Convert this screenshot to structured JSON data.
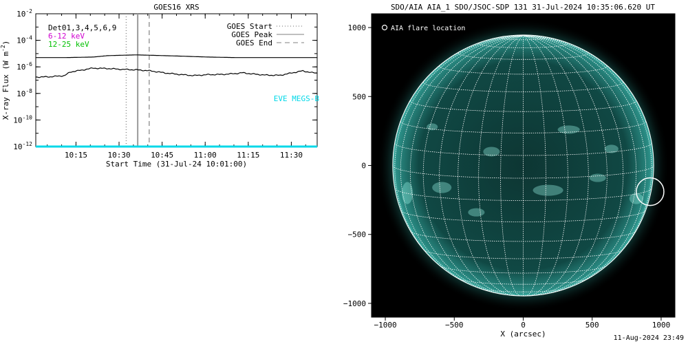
{
  "footer_timestamp": "11-Aug-2024 23:49",
  "chart_data": [
    {
      "type": "line",
      "title": "GOES16 XRS",
      "xlabel": "Start Time (31-Jul-24 10:01:00)",
      "ylabel": "X-ray Flux (W m^-2)",
      "ylabel_parts": {
        "main": "X-ray Flux (W m",
        "exp": "-2",
        "close": ")"
      },
      "y_scale": "log",
      "ylim": [
        1e-12,
        0.01
      ],
      "y_ticks": [
        {
          "base": "10",
          "exp": "-2",
          "value": 0.01
        },
        {
          "base": "10",
          "exp": "-4",
          "value": 0.0001
        },
        {
          "base": "10",
          "exp": "-6",
          "value": 1e-06
        },
        {
          "base": "10",
          "exp": "-8",
          "value": 1e-08
        },
        {
          "base": "10",
          "exp": "-10",
          "value": 1e-10
        },
        {
          "base": "10",
          "exp": "-12",
          "value": 1e-12
        }
      ],
      "x_range_minutes": [
        0,
        98
      ],
      "x_ticks": [
        {
          "label": "10:15",
          "minutes": 14
        },
        {
          "label": "10:30",
          "minutes": 29
        },
        {
          "label": "10:45",
          "minutes": 44
        },
        {
          "label": "11:00",
          "minutes": 59
        },
        {
          "label": "11:15",
          "minutes": 74
        },
        {
          "label": "11:30",
          "minutes": 89
        }
      ],
      "detectors_label": "Det01,3,4,5,6,9",
      "channel_labels": [
        {
          "text": "6-12 keV",
          "color": "#d000d0"
        },
        {
          "text": "12-25 keV",
          "color": "#00c000"
        }
      ],
      "eve_label": {
        "text": "EVE MEGS-B",
        "color": "#00d8e8"
      },
      "legend_position": "top-right",
      "legend": [
        {
          "label": "GOES Start",
          "style": "dotted",
          "minutes": 31.5
        },
        {
          "label": "GOES Peak",
          "style": "solid",
          "minutes": 35.5
        },
        {
          "label": "GOES End",
          "style": "dashed",
          "minutes": 39.5
        }
      ],
      "series": [
        {
          "color": "#000000",
          "x": [
            0,
            10,
            20,
            25,
            30,
            35,
            40,
            50,
            60,
            70,
            80,
            90,
            98
          ],
          "y": [
            5e-06,
            5e-06,
            5.5e-06,
            7e-06,
            7.5e-06,
            8e-06,
            7.5e-06,
            6.5e-06,
            5.5e-06,
            5e-06,
            5e-06,
            5e-06,
            5e-06
          ]
        },
        {
          "color": "#000000",
          "x": [
            0,
            5,
            10,
            12,
            14,
            16,
            18,
            20,
            25,
            30,
            35,
            40,
            45,
            50,
            55,
            60,
            65,
            70,
            72,
            75,
            80,
            85,
            90,
            93,
            96,
            98
          ],
          "y": [
            1.7e-07,
            1.8e-07,
            2.2e-07,
            4e-07,
            5e-07,
            5.5e-07,
            7e-07,
            8e-07,
            7.5e-07,
            6.5e-07,
            6e-07,
            5e-07,
            3.5e-07,
            2.7e-07,
            2.2e-07,
            2.6e-07,
            2.7e-07,
            3.2e-07,
            3.6e-07,
            3e-07,
            2.4e-07,
            2.3e-07,
            3.8e-07,
            5e-07,
            3.7e-07,
            3.4e-07
          ]
        },
        {
          "color": "#00d8e8",
          "x": [
            0,
            98
          ],
          "y": [
            1e-12,
            1e-12
          ]
        }
      ]
    },
    {
      "type": "scatter",
      "title": "SDO/AIA AIA_1 SDO/JSOC-SDP 131 31-Jul-2024 10:35:06.620 UT",
      "xlabel": "X (arcsec)",
      "ylabel": "",
      "xlim": [
        -1100,
        1100
      ],
      "ylim": [
        -1100,
        1100
      ],
      "x_ticks": [
        -1000,
        -500,
        0,
        500,
        1000
      ],
      "y_ticks": [
        -1000,
        -500,
        0,
        500,
        1000
      ],
      "x_tick_labels": [
        "−1000",
        "−500",
        "0",
        "500",
        "1000"
      ],
      "y_tick_labels": [
        "−1000",
        "−500",
        "0",
        "500",
        "1000"
      ],
      "legend_label": "AIA flare location",
      "solar_radius_arcsec": 946,
      "grid_step_deg": 10,
      "flare_location": {
        "x": 920,
        "y": -190,
        "radius": 100
      },
      "colors": {
        "background": "#000000",
        "disk": "#0a3c3a",
        "grid": "#ffffff",
        "bright": "#a0fff0"
      }
    }
  ]
}
